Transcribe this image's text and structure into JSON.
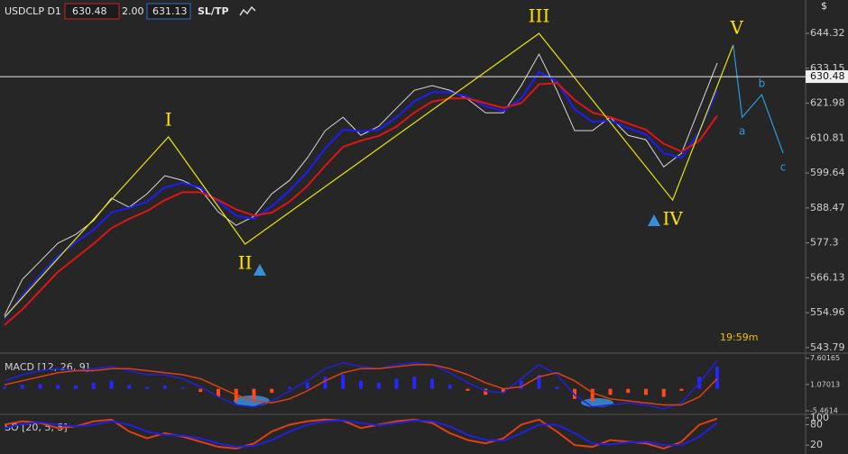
{
  "header": {
    "symbol": "USDCLP D1",
    "bid": "630.48",
    "spread": "2.00",
    "ask": "631.13",
    "sltp": "SL/TP",
    "currency_icon": "$"
  },
  "chart_data": [
    {
      "type": "line",
      "title": "USDCLP D1",
      "ylim": [
        542.6,
        655.0
      ],
      "yticks": [
        644.32,
        633.15,
        621.98,
        610.81,
        599.64,
        588.47,
        577.3,
        566.13,
        554.96,
        543.79
      ],
      "current_price": 630.48,
      "time_label": "19:59m",
      "series": [
        {
          "color": "#d8d8d8",
          "values": [
            554.1,
            565.6,
            571.4,
            577.2,
            580.0,
            584.4,
            591.6,
            588.7,
            593.0,
            598.8,
            597.3,
            594.4,
            587.2,
            582.9,
            585.8,
            593.0,
            597.3,
            604.5,
            613.2,
            617.5,
            611.7,
            614.6,
            620.4,
            626.1,
            627.6,
            626.1,
            623.3,
            618.9,
            618.9,
            627.6,
            637.7,
            626.1,
            613.2,
            613.2,
            617.5,
            611.7,
            610.3,
            601.6,
            606.0,
            620.4,
            634.8
          ]
        },
        {
          "color": "#1c1cff",
          "values": [
            553.0,
            560.5,
            567.0,
            573.0,
            577.5,
            581.5,
            587.0,
            588.5,
            590.5,
            595.0,
            596.5,
            595.0,
            590.5,
            586.0,
            585.0,
            589.0,
            594.0,
            600.0,
            607.5,
            613.5,
            613.0,
            613.5,
            617.5,
            622.5,
            625.5,
            625.5,
            624.0,
            621.0,
            619.5,
            623.5,
            632.0,
            629.0,
            620.0,
            616.0,
            616.5,
            614.0,
            612.0,
            606.0,
            604.5,
            613.0,
            626.0
          ]
        },
        {
          "color": "#e01414",
          "values": [
            551.0,
            556.0,
            562.0,
            568.0,
            572.5,
            577.0,
            582.0,
            585.0,
            587.5,
            591.0,
            593.5,
            593.5,
            591.0,
            588.0,
            586.0,
            587.0,
            590.5,
            595.5,
            602.0,
            608.0,
            610.0,
            611.5,
            614.5,
            619.0,
            622.5,
            623.5,
            623.5,
            622.0,
            620.5,
            622.0,
            628.0,
            628.5,
            623.0,
            619.0,
            617.5,
            615.5,
            613.5,
            609.0,
            606.5,
            610.0,
            618.0
          ]
        }
      ],
      "waves": {
        "color": "#e6e600",
        "labels": [
          null,
          "I",
          "II",
          "III",
          "IV",
          "V"
        ],
        "index": [
          0,
          9.2,
          13.5,
          30,
          37.5,
          40.9
        ],
        "values": [
          553.5,
          611.2,
          576.9,
          644.3,
          591.0,
          640.6
        ]
      },
      "forecast": {
        "color": "#2a9be0",
        "labels": [
          "a",
          "b",
          "c"
        ],
        "index": [
          41.4,
          42.5,
          43.7
        ],
        "values": [
          617.5,
          624.7,
          606.0
        ]
      }
    },
    {
      "type": "macd",
      "title": "MACD [12, 26, 9]",
      "ylim": [
        -5.9,
        8.2
      ],
      "yticks": [
        7.60165,
        1.07013,
        -5.4614
      ],
      "histogram": {
        "up_color": "#2626ff",
        "down_color": "#ff4a1a",
        "values": [
          0.5,
          1.0,
          1.2,
          1.0,
          0.8,
          1.5,
          2.0,
          1.0,
          0.5,
          0.8,
          0.3,
          -0.8,
          -2.0,
          -3.0,
          -2.5,
          -1.0,
          0.5,
          1.5,
          3.0,
          3.5,
          2.0,
          1.5,
          2.5,
          3.0,
          2.5,
          1.0,
          -0.5,
          -1.5,
          -1.0,
          2.0,
          3.5,
          0.5,
          -2.5,
          -3.0,
          -1.5,
          -1.0,
          -1.5,
          -2.0,
          -0.5,
          3.0,
          5.5
        ]
      },
      "series": [
        {
          "color": "#2020e0",
          "values": [
            2.0,
            3.5,
            4.5,
            5.0,
            4.5,
            5.0,
            5.5,
            4.5,
            3.5,
            3.5,
            2.5,
            0.5,
            -2.0,
            -4.0,
            -4.5,
            -3.0,
            -0.5,
            2.0,
            5.0,
            6.5,
            5.5,
            5.0,
            6.0,
            6.5,
            6.0,
            4.0,
            1.5,
            -0.5,
            -1.0,
            2.5,
            6.0,
            3.5,
            -1.5,
            -4.5,
            -4.0,
            -3.5,
            -4.0,
            -5.0,
            -3.5,
            1.5,
            7.0
          ]
        },
        {
          "color": "#e04010",
          "values": [
            1.0,
            2.0,
            3.0,
            4.0,
            4.5,
            4.5,
            5.0,
            5.0,
            4.5,
            4.0,
            3.5,
            2.5,
            0.5,
            -1.5,
            -3.0,
            -3.5,
            -2.5,
            -0.5,
            2.0,
            4.0,
            5.0,
            5.0,
            5.5,
            6.0,
            6.0,
            5.0,
            3.5,
            1.5,
            0.0,
            0.5,
            3.0,
            4.0,
            2.0,
            -1.0,
            -2.5,
            -3.0,
            -3.5,
            -4.0,
            -4.0,
            -2.0,
            2.5
          ]
        }
      ]
    },
    {
      "type": "line",
      "title": "SO [20, 5, 5]",
      "ylim": [
        -6,
        105
      ],
      "yticks": [
        100,
        80,
        20
      ],
      "series": [
        {
          "color": "#e04010",
          "values": [
            80,
            90,
            85,
            70,
            75,
            90,
            95,
            60,
            40,
            55,
            45,
            30,
            15,
            10,
            25,
            60,
            80,
            90,
            95,
            92,
            70,
            80,
            90,
            95,
            85,
            55,
            35,
            25,
            40,
            80,
            95,
            60,
            20,
            15,
            35,
            30,
            25,
            10,
            30,
            80,
            98
          ]
        },
        {
          "color": "#2020e0",
          "values": [
            70,
            82,
            87,
            80,
            75,
            80,
            90,
            80,
            60,
            50,
            48,
            40,
            25,
            15,
            18,
            35,
            60,
            80,
            90,
            93,
            85,
            78,
            85,
            92,
            90,
            75,
            50,
            35,
            33,
            55,
            80,
            80,
            55,
            25,
            22,
            28,
            30,
            20,
            20,
            45,
            85
          ]
        }
      ]
    }
  ]
}
